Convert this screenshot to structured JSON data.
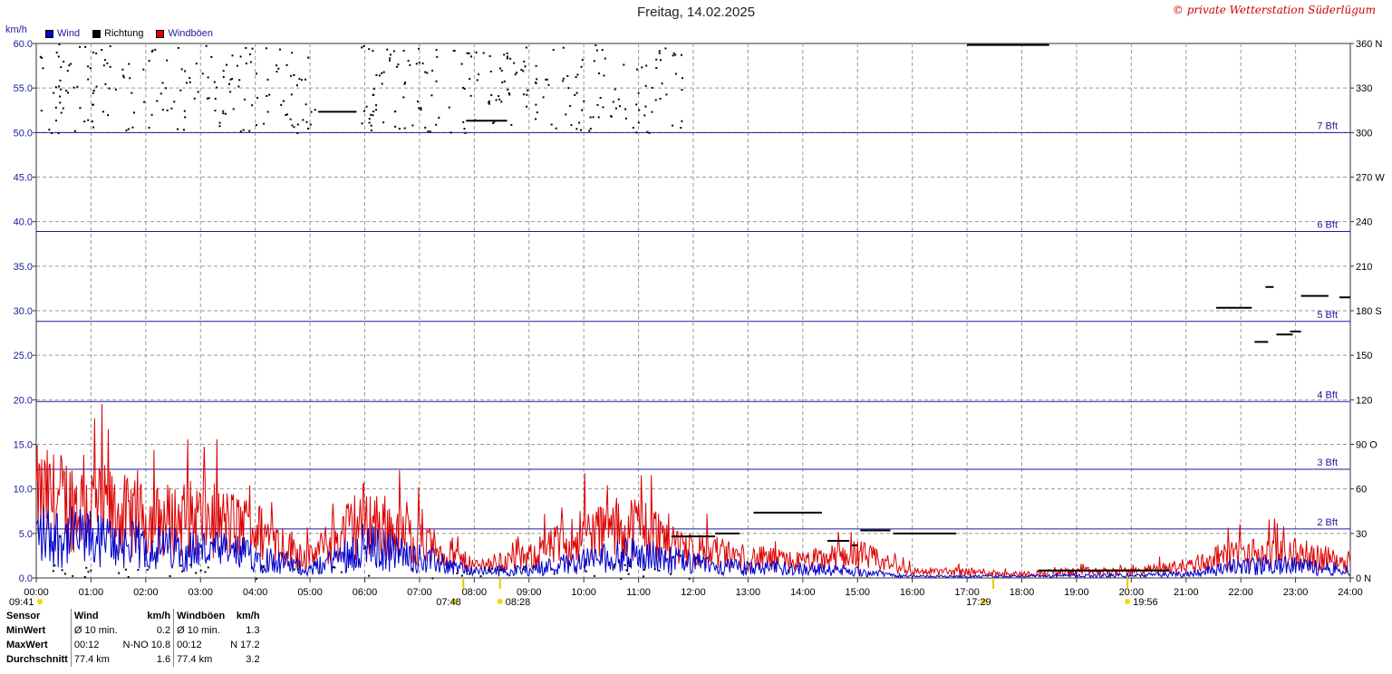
{
  "header": {
    "title": "Freitag, 14.02.2025",
    "copyright": "© private Wetterstation Süderlügum",
    "unit_left": "km/h"
  },
  "legend": [
    {
      "label": "Wind",
      "color": "#0000cc"
    },
    {
      "label": "Richtung",
      "color": "#000000"
    },
    {
      "label": "Windböen",
      "color": "#dd0000"
    }
  ],
  "colors": {
    "wind": "#0000cc",
    "gust": "#dd0000",
    "direction": "#000000",
    "beaufort": "#1a1aa0",
    "grid": "#9a9a9a"
  },
  "chart_data": {
    "type": "line",
    "title": "Freitag, 14.02.2025",
    "ylabel": "km/h",
    "ylim": [
      0,
      60
    ],
    "y_ticks": [
      "60.0",
      "55.0",
      "50.0",
      "45.0",
      "40.0",
      "35.0",
      "30.0",
      "25.0",
      "20.0",
      "15.0",
      "10.0",
      "5.0",
      "0.0"
    ],
    "y2_ticks": [
      "360 N",
      "330",
      "300",
      "270 W",
      "240",
      "210",
      "180 S",
      "150",
      "120",
      "90 O",
      "60",
      "30",
      "0 N"
    ],
    "y2lim": [
      0,
      360
    ],
    "x_ticks": [
      "00:00",
      "01:00",
      "02:00",
      "03:00",
      "04:00",
      "05:00",
      "06:00",
      "07:00",
      "08:00",
      "09:00",
      "10:00",
      "11:00",
      "12:00",
      "13:00",
      "14:00",
      "15:00",
      "16:00",
      "17:00",
      "18:00",
      "19:00",
      "20:00",
      "21:00",
      "22:00",
      "23:00",
      "24:00"
    ],
    "beaufort_lines": [
      {
        "label": "2 Bft",
        "value": 5.5
      },
      {
        "label": "3 Bft",
        "value": 12.2
      },
      {
        "label": "4 Bft",
        "value": 19.8
      },
      {
        "label": "5 Bft",
        "value": 28.8
      },
      {
        "label": "6 Bft",
        "value": 38.9
      },
      {
        "label": "7 Bft",
        "value": 50.0
      }
    ],
    "sun_markers": [
      {
        "label": "09:41",
        "hour": 0
      },
      {
        "label": "07:48",
        "hour": 7.8
      },
      {
        "label": "08:28",
        "hour": 8.47
      },
      {
        "label": "17:29",
        "hour": 17.48
      },
      {
        "label": "19:56",
        "hour": 19.93
      }
    ],
    "series": [
      {
        "name": "Wind",
        "color": "#0000cc",
        "hourly_levels": [
          5.5,
          4.8,
          3.8,
          3.5,
          2.8,
          1.0,
          4.0,
          2.5,
          0.8,
          1.0,
          2.2,
          3.0,
          1.8,
          1.2,
          1.2,
          0.8,
          0.2,
          0.2,
          0.2,
          0.3,
          0.3,
          0.5,
          1.5,
          1.5,
          1.0
        ]
      },
      {
        "name": "Windböen",
        "color": "#dd0000",
        "hourly_levels": [
          10.0,
          9.0,
          7.0,
          7.5,
          6.0,
          2.5,
          7.5,
          4.5,
          1.5,
          2.5,
          5.5,
          6.5,
          3.5,
          2.5,
          2.0,
          3.0,
          0.8,
          0.8,
          0.5,
          0.8,
          0.8,
          1.5,
          3.0,
          3.0,
          2.0
        ]
      },
      {
        "name": "Richtung",
        "segments": [
          {
            "from": 5.15,
            "to": 5.85,
            "deg": 314
          },
          {
            "from": 7.85,
            "to": 8.6,
            "deg": 308
          },
          {
            "from": 11.6,
            "to": 12.0,
            "deg": 28
          },
          {
            "from": 11.9,
            "to": 12.4,
            "deg": 28
          },
          {
            "from": 12.4,
            "to": 12.85,
            "deg": 30
          },
          {
            "from": 13.1,
            "to": 14.35,
            "deg": 44
          },
          {
            "from": 14.45,
            "to": 14.85,
            "deg": 25
          },
          {
            "from": 14.9,
            "to": 15.0,
            "deg": 22
          },
          {
            "from": 15.05,
            "to": 15.6,
            "deg": 32
          },
          {
            "from": 15.65,
            "to": 16.8,
            "deg": 30
          },
          {
            "from": 17.0,
            "to": 18.5,
            "deg": 359
          },
          {
            "from": 18.3,
            "to": 20.7,
            "deg": 5
          },
          {
            "from": 21.55,
            "to": 22.2,
            "deg": 182
          },
          {
            "from": 22.25,
            "to": 22.5,
            "deg": 159
          },
          {
            "from": 22.45,
            "to": 22.6,
            "deg": 196
          },
          {
            "from": 22.65,
            "to": 22.95,
            "deg": 164
          },
          {
            "from": 22.9,
            "to": 23.1,
            "deg": 166
          },
          {
            "from": 23.1,
            "to": 23.6,
            "deg": 190
          },
          {
            "from": 23.8,
            "to": 24.0,
            "deg": 189
          }
        ]
      }
    ]
  },
  "sensor_table": {
    "headers": [
      "Sensor",
      "Wind",
      "km/h",
      "Windböen",
      "km/h"
    ],
    "rows": [
      [
        "MinWert",
        "Ø 10 min.",
        "0.2",
        "Ø 10 min.",
        "1.3"
      ],
      [
        "MaxWert",
        "00:12",
        "N-NO 10.8",
        "00:12",
        "N 17.2"
      ],
      [
        "Durchschnitt",
        "77.4 km",
        "1.6",
        "77.4 km",
        "3.2"
      ]
    ]
  }
}
